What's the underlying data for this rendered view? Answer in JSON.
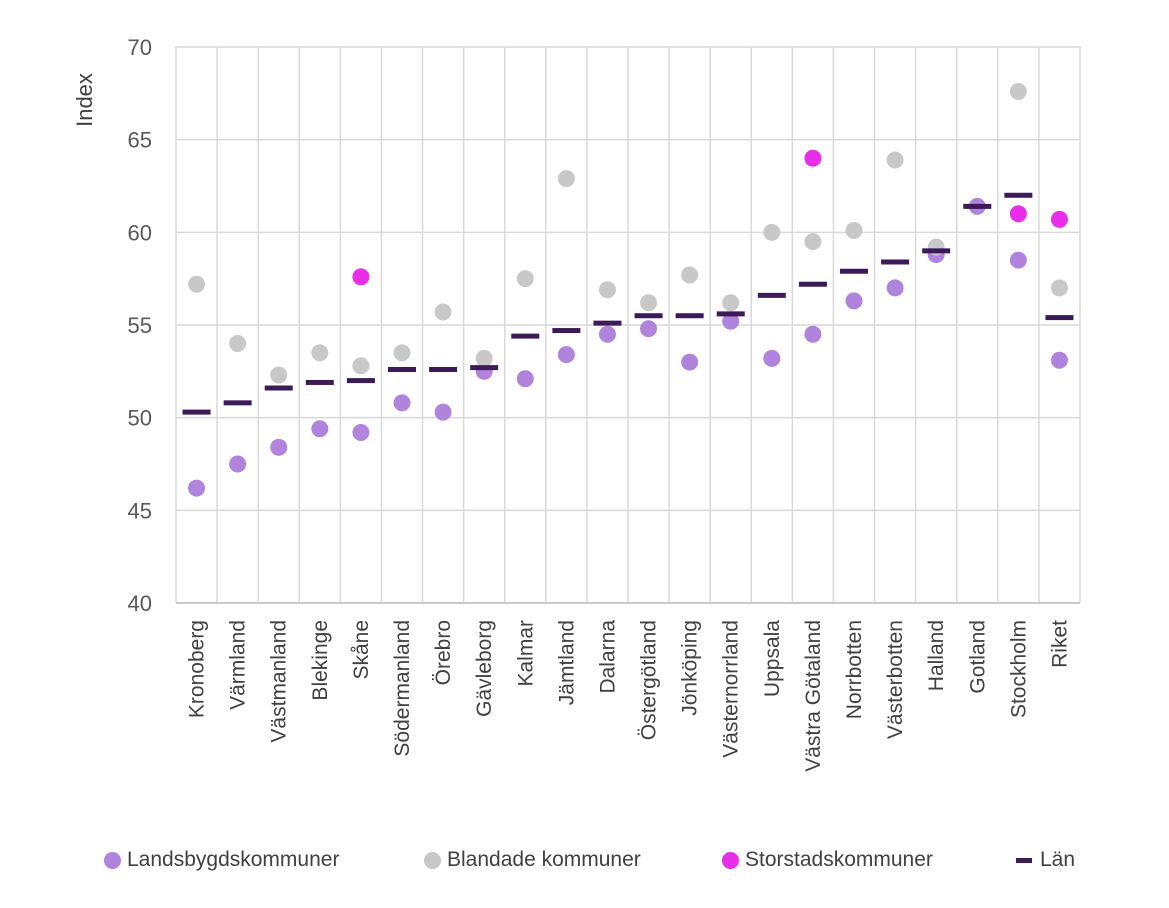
{
  "chart_data": {
    "type": "scatter",
    "ylabel": "Index",
    "ylim": [
      40,
      70
    ],
    "yticks": [
      40,
      45,
      50,
      55,
      60,
      65,
      70
    ],
    "grid": true,
    "legend_position": "bottom",
    "categories": [
      "Kronoberg",
      "Värmland",
      "Västmanland",
      "Blekinge",
      "Skåne",
      "Södermanland",
      "Örebro",
      "Gävleborg",
      "Kalmar",
      "Jämtland",
      "Dalarna",
      "Östergötland",
      "Jönköping",
      "Västernorrland",
      "Uppsala",
      "Västra Götaland",
      "Norrbotten",
      "Västerbotten",
      "Halland",
      "Gotland",
      "Stockholm",
      "Riket"
    ],
    "series": [
      {
        "name": "Landsbygdskommuner",
        "marker": "circle",
        "color": "#b083dc",
        "values": [
          46.2,
          47.5,
          48.4,
          49.4,
          49.2,
          50.8,
          50.3,
          52.5,
          52.1,
          53.4,
          54.5,
          54.8,
          53.0,
          55.2,
          53.2,
          54.5,
          56.3,
          57.0,
          58.8,
          61.4,
          58.5,
          53.1
        ]
      },
      {
        "name": "Blandade kommuner",
        "marker": "circle",
        "color": "#c8c8c8",
        "values": [
          57.2,
          54.0,
          52.3,
          53.5,
          52.8,
          53.5,
          55.7,
          53.2,
          57.5,
          62.9,
          56.9,
          56.2,
          57.7,
          56.2,
          60.0,
          59.5,
          60.1,
          63.9,
          59.2,
          null,
          67.6,
          57.0
        ]
      },
      {
        "name": "Storstadskommuner",
        "marker": "circle",
        "color": "#e92ee9",
        "values": [
          null,
          null,
          null,
          null,
          57.6,
          null,
          null,
          null,
          null,
          null,
          null,
          null,
          null,
          null,
          null,
          64.0,
          null,
          null,
          null,
          null,
          61.0,
          60.7
        ]
      },
      {
        "name": "Län",
        "marker": "dash",
        "color": "#3b1a57",
        "values": [
          50.3,
          50.8,
          51.6,
          51.9,
          52.0,
          52.6,
          52.6,
          52.7,
          54.4,
          54.7,
          55.1,
          55.5,
          55.5,
          55.6,
          56.6,
          57.2,
          57.9,
          58.4,
          59.0,
          61.4,
          62.0,
          55.4
        ]
      }
    ]
  }
}
